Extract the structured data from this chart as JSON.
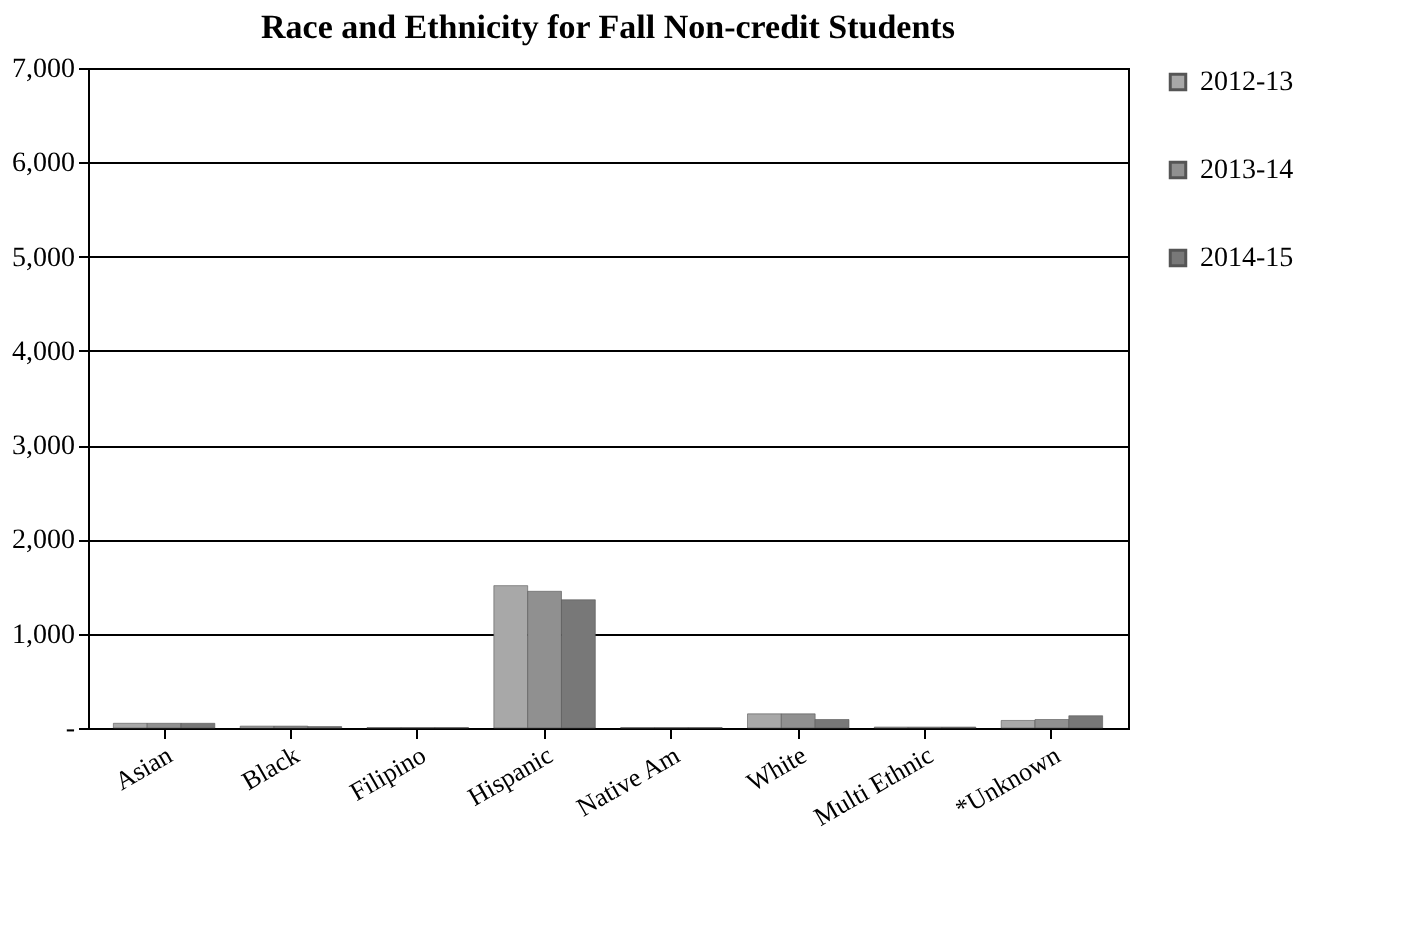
{
  "chart_data": {
    "type": "bar",
    "title": "Race and Ethnicity for Fall Non-credit Students",
    "categories": [
      "Asian",
      "Black",
      "Filipino",
      "Hispanic",
      "Native Am",
      "White",
      "Multi Ethnic",
      "*Unknown"
    ],
    "series": [
      {
        "name": "2012-13",
        "color": "#a8a8a8",
        "values": [
          50,
          20,
          5,
          1510,
          5,
          150,
          10,
          80
        ]
      },
      {
        "name": "2013-14",
        "color": "#909090",
        "values": [
          50,
          20,
          5,
          1450,
          5,
          150,
          10,
          90
        ]
      },
      {
        "name": "2014-15",
        "color": "#787878",
        "values": [
          50,
          15,
          5,
          1360,
          5,
          90,
          10,
          130
        ]
      }
    ],
    "ylim": [
      0,
      7000
    ],
    "yticks": [
      {
        "value": 0,
        "label": "-"
      },
      {
        "value": 1000,
        "label": "1,000"
      },
      {
        "value": 2000,
        "label": "2,000"
      },
      {
        "value": 3000,
        "label": "3,000"
      },
      {
        "value": 4000,
        "label": "4,000"
      },
      {
        "value": 5000,
        "label": "5,000"
      },
      {
        "value": 6000,
        "label": "6,000"
      },
      {
        "value": 7000,
        "label": "7,000"
      }
    ],
    "grid": "y",
    "legend": "right"
  }
}
